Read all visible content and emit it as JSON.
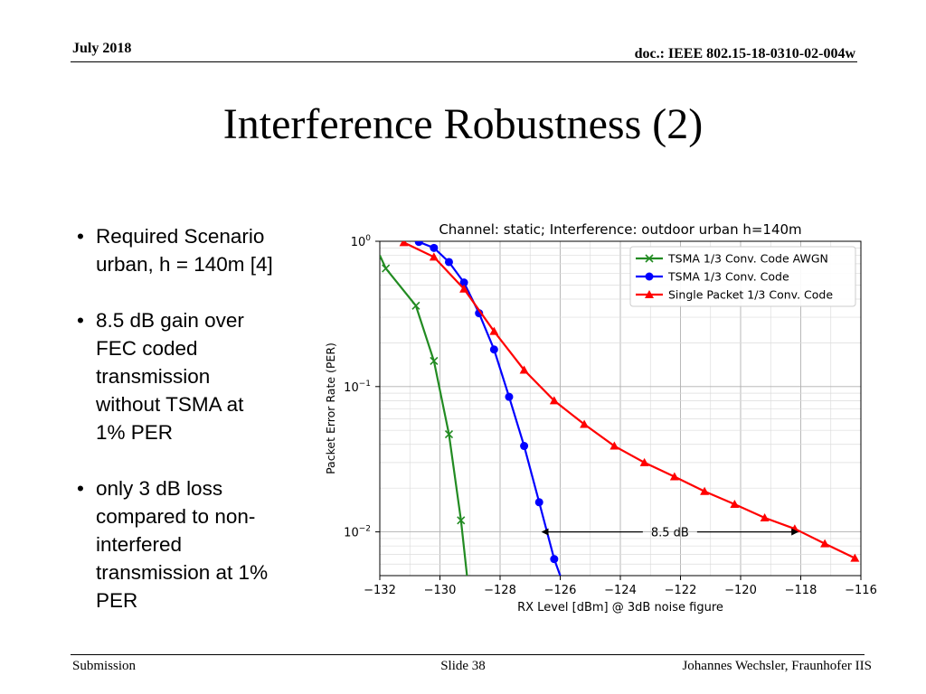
{
  "header": {
    "date": "July 2018",
    "doc": "doc.: IEEE 802.15-18-0310-02-004w"
  },
  "title": "Interference Robustness (2)",
  "bullets": [
    {
      "text": "Required Scenario urban, h = 140m [4]",
      "lines": [
        "Required Scenario",
        "urban, h = 140m [4]"
      ]
    },
    {
      "text": "8.5 dB gain over FEC coded transmission without TSMA at 1% PER",
      "lines": [
        "8.5 dB gain over",
        "FEC coded",
        "transmission",
        "without TSMA at",
        "1% PER"
      ]
    },
    {
      "text": "only 3 dB loss compared to non-interfered transmission at 1% PER",
      "lines": [
        "only 3 dB loss",
        "compared to non-",
        "interfered",
        "transmission at 1%",
        "PER"
      ]
    }
  ],
  "bullet_glyph": "•",
  "footer": {
    "left": "Submission",
    "center": "Slide 38",
    "right": "Johannes Wechsler, Fraunhofer IIS"
  },
  "chart_data": {
    "type": "line",
    "title": "Channel: static; Interference: outdoor urban h=140m",
    "xlabel": "RX Level [dBm] @ 3dB noise figure",
    "ylabel": "Packet Error Rate (PER)",
    "xlim": [
      -132,
      -116
    ],
    "ylim": [
      0.005,
      1
    ],
    "yscale": "log",
    "grid": true,
    "legend_position": "top-right",
    "xticks": [
      -132,
      -130,
      -128,
      -126,
      -124,
      -122,
      -120,
      -118,
      -116
    ],
    "xtick_labels": [
      "−132",
      "−130",
      "−128",
      "−126",
      "−124",
      "−122",
      "−120",
      "−118",
      "−116"
    ],
    "yticks": [
      {
        "value": 1,
        "base": "10",
        "exp": "0"
      },
      {
        "value": 0.1,
        "base": "10",
        "exp": "−1"
      },
      {
        "value": 0.01,
        "base": "10",
        "exp": "−2"
      }
    ],
    "series": [
      {
        "name": "TSMA 1/3 Conv. Code AWGN",
        "color": "#228B22",
        "marker": "x",
        "x": [
          -131.8,
          -130.8,
          -130.2,
          -129.7,
          -129.3
        ],
        "y": [
          0.65,
          0.36,
          0.15,
          0.047,
          0.012
        ],
        "line_x": [
          -132,
          -131.8,
          -130.8,
          -130.2,
          -129.7,
          -129.3,
          -129.1
        ],
        "line_y": [
          0.8,
          0.65,
          0.36,
          0.15,
          0.047,
          0.012,
          0.005
        ]
      },
      {
        "name": "TSMA 1/3 Conv. Code",
        "color": "#0000FF",
        "marker": "circle",
        "x": [
          -130.7,
          -130.2,
          -129.7,
          -129.2,
          -128.7,
          -128.2,
          -127.7,
          -127.2,
          -126.7,
          -126.2
        ],
        "y": [
          0.99,
          0.9,
          0.72,
          0.52,
          0.32,
          0.18,
          0.085,
          0.039,
          0.016,
          0.0065
        ],
        "line_x": [
          -130.7,
          -130.2,
          -129.7,
          -129.2,
          -128.7,
          -128.2,
          -127.7,
          -127.2,
          -126.7,
          -126.2,
          -126.0
        ],
        "line_y": [
          0.99,
          0.9,
          0.72,
          0.52,
          0.32,
          0.18,
          0.085,
          0.039,
          0.016,
          0.0065,
          0.005
        ]
      },
      {
        "name": "Single Packet 1/3 Conv. Code",
        "color": "#FF0000",
        "marker": "triangle",
        "x": [
          -131.2,
          -130.2,
          -129.2,
          -128.2,
          -127.2,
          -126.2,
          -125.2,
          -124.2,
          -123.2,
          -122.2,
          -121.2,
          -120.2,
          -119.2,
          -118.2,
          -117.2,
          -116.2
        ],
        "y": [
          0.98,
          0.78,
          0.47,
          0.24,
          0.13,
          0.08,
          0.055,
          0.039,
          0.03,
          0.024,
          0.019,
          0.0155,
          0.0125,
          0.0105,
          0.0083,
          0.0066
        ],
        "line_x": [
          -131.2,
          -130.2,
          -129.2,
          -128.2,
          -127.2,
          -126.2,
          -125.2,
          -124.2,
          -123.2,
          -122.2,
          -121.2,
          -120.2,
          -119.2,
          -118.2,
          -117.2,
          -116.2
        ],
        "line_y": [
          0.98,
          0.78,
          0.47,
          0.24,
          0.13,
          0.08,
          0.055,
          0.039,
          0.03,
          0.024,
          0.019,
          0.0155,
          0.0125,
          0.0105,
          0.0083,
          0.0066
        ]
      }
    ],
    "annotation": {
      "text": "8.5 dB",
      "x_start": -126.6,
      "x_end": -118.1,
      "y": 0.01
    }
  }
}
